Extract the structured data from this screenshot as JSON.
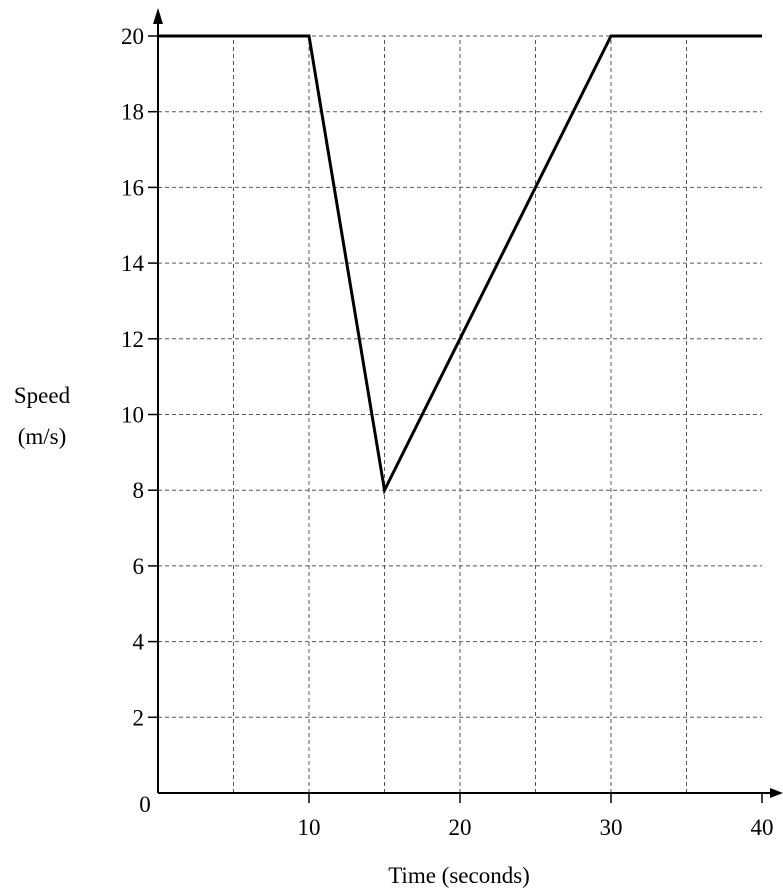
{
  "chart_data": {
    "type": "line",
    "xlabel": "Time (seconds)",
    "ylabel_line1": "Speed",
    "ylabel_line2": "(m/s)",
    "origin_label": "0",
    "xlim": [
      0,
      40
    ],
    "ylim": [
      0,
      20
    ],
    "x_ticks": [
      10,
      20,
      30,
      40
    ],
    "x_tick_labels": [
      "10",
      "20",
      "30",
      "40"
    ],
    "y_ticks": [
      2,
      4,
      6,
      8,
      10,
      12,
      14,
      16,
      18,
      20
    ],
    "y_tick_labels": [
      "2",
      "4",
      "6",
      "8",
      "10",
      "12",
      "14",
      "16",
      "18",
      "20"
    ],
    "x_grid_step": 5,
    "y_grid_step": 2,
    "grid": true,
    "grid_style": "dashed",
    "series": [
      {
        "x": [
          0,
          10,
          15,
          30,
          40
        ],
        "y": [
          20,
          20,
          8,
          20,
          20
        ]
      }
    ],
    "line_color": "#000000",
    "grid_color": "#555555"
  }
}
